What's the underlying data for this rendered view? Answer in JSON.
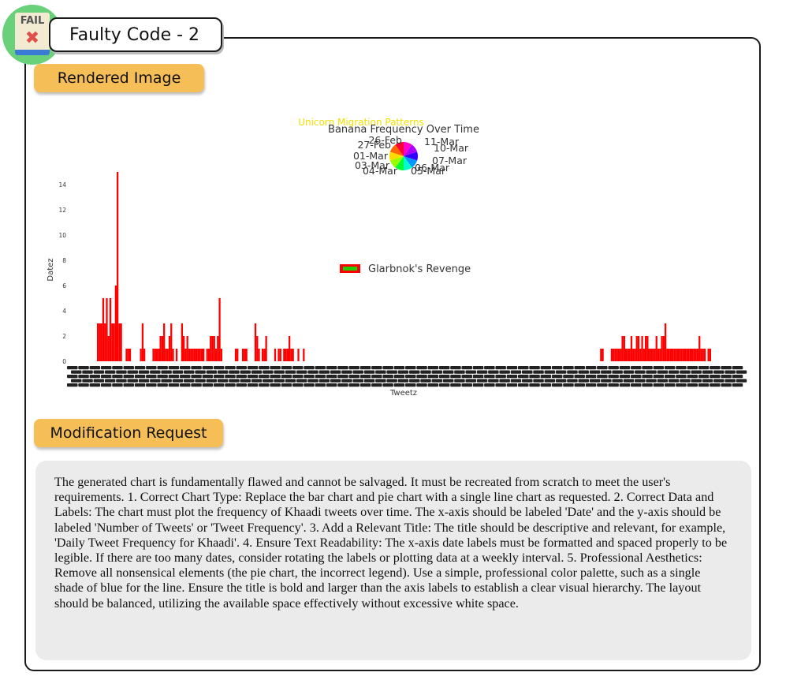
{
  "header": {
    "title": "Faulty Code - 2",
    "badge_text": "FAIL",
    "badge_mark": "✖"
  },
  "sections": {
    "rendered_label": "Rendered Image",
    "modification_label": "Modification Request"
  },
  "chart_data": [
    {
      "type": "bar",
      "xlabel": "Tweetz",
      "ylabel": "Datez",
      "ylim": [
        0,
        15
      ],
      "yticks": [
        0,
        2,
        4,
        6,
        8,
        10,
        12,
        14
      ],
      "legend": {
        "label": "Glarbnok's Revenge",
        "placement": "center"
      },
      "series_color": "#ff0000",
      "legend_inner_color": "#22cc00",
      "values": [
        3,
        3,
        3,
        5,
        3,
        5,
        2,
        5,
        3,
        3,
        6,
        15,
        3,
        3,
        0,
        0,
        1,
        1,
        1,
        0,
        0,
        0,
        0,
        0,
        1,
        3,
        1,
        0,
        0,
        0,
        0,
        1,
        1,
        1,
        1,
        2,
        2,
        3,
        1,
        1,
        2,
        3,
        1,
        0,
        1,
        0,
        0,
        3,
        2,
        1,
        2,
        1,
        1,
        1,
        1,
        1,
        1,
        1,
        1,
        1,
        0,
        1,
        1,
        2,
        2,
        2,
        1,
        2,
        5,
        1,
        0,
        0,
        0,
        0,
        0,
        0,
        0,
        1,
        1,
        0,
        0,
        1,
        1,
        1,
        0,
        0,
        0,
        0,
        3,
        2,
        1,
        0,
        1,
        1,
        2,
        0,
        0,
        0,
        0,
        1,
        0,
        1,
        1,
        0,
        1,
        1,
        1,
        2,
        1,
        1,
        0,
        0,
        1,
        0,
        0
      ],
      "tail_values": [
        1,
        0,
        0,
        0,
        0,
        0,
        0,
        0,
        0,
        0,
        0,
        0,
        0,
        0,
        0,
        0,
        0,
        0,
        0,
        0,
        0,
        0,
        0,
        0,
        0,
        0,
        0,
        0,
        0,
        0,
        0,
        0,
        0,
        0,
        0,
        0,
        0,
        0,
        0,
        0,
        0,
        0,
        0,
        0,
        0,
        0,
        0,
        0,
        0,
        0,
        0,
        0,
        0,
        0,
        0,
        0,
        0,
        0,
        0,
        0,
        0,
        0,
        0,
        0,
        0,
        0,
        0,
        0,
        0,
        0,
        0,
        0,
        0,
        0,
        0,
        0,
        0,
        0,
        0,
        0,
        0,
        0,
        0,
        0,
        0,
        0,
        0,
        0,
        0,
        0,
        0,
        0,
        0,
        0,
        0,
        0,
        0,
        0,
        0,
        0,
        0,
        0,
        0,
        0,
        0,
        0,
        0,
        0,
        0,
        0,
        0,
        0,
        0,
        0,
        0,
        0,
        0,
        0,
        0,
        0,
        0,
        0,
        0,
        0,
        0,
        0,
        0,
        0,
        0,
        0,
        0,
        0,
        0,
        0,
        0,
        0,
        0,
        0,
        0,
        0,
        0,
        0,
        0,
        0,
        0,
        0,
        0,
        0,
        0,
        0,
        0,
        0,
        0,
        0,
        0,
        0,
        0,
        0,
        0,
        0,
        0,
        0,
        0,
        0,
        0,
        0,
        1,
        1,
        0,
        0,
        0,
        0,
        1,
        1,
        1,
        1,
        1,
        1,
        2,
        2,
        1,
        1,
        1,
        2,
        1,
        1,
        2,
        2,
        1,
        2,
        1,
        2,
        2,
        1,
        1,
        1,
        1,
        2,
        1,
        1,
        2,
        2,
        3,
        1,
        1,
        1,
        1,
        1,
        1,
        1,
        1,
        1,
        1,
        1,
        1,
        1,
        1,
        1,
        1,
        1,
        1,
        2,
        1,
        1,
        1,
        0,
        1,
        1
      ]
    },
    {
      "type": "pie",
      "title": "Banana Frequency Over Time",
      "overlapping_title": "Unicorn Migration Patterns",
      "labels": [
        "11-Mar",
        "10-Mar",
        "07-Mar",
        "06-Mar",
        "05-Mar",
        "04-Mar",
        "03-Mar",
        "01-Mar",
        "27-Feb",
        "26-Feb"
      ],
      "values": [
        1,
        1,
        1,
        1,
        1,
        1,
        1,
        1,
        1,
        1
      ]
    }
  ],
  "modification_request": "The generated chart is fundamentally flawed and cannot be salvaged. It must be recreated from scratch to meet the user's requirements. 1. Correct Chart Type: Replace the bar chart and pie chart with a single line chart as requested.  2. Correct Data and Labels: The chart must plot the frequency of Khaadi tweets over time. The x-axis should be labeled 'Date' and the y-axis should be labeled 'Number of Tweets' or 'Tweet Frequency'.  3. Add a Relevant Title: The title should be descriptive and relevant, for example, 'Daily Tweet Frequency for Khaadi'.  4. Ensure Text Readability: The x-axis date labels must be formatted and spaced properly to be legible. If there are too many dates, consider rotating the labels or plotting data at a weekly interval.  5. Professional Aesthetics: Remove all nonsensical elements (the pie chart, the incorrect legend). Use a simple, professional color palette, such as a single shade of blue for the line. Ensure the title is bold and larger than the axis labels to establish a clear visual hierarchy. The layout should be balanced, utilizing the available space effectively without excessive white space."
}
